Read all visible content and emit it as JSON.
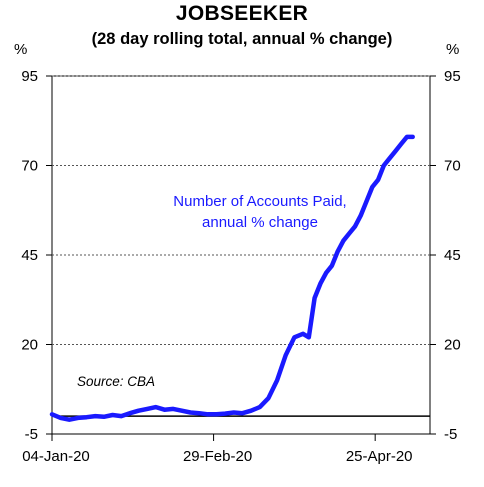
{
  "chart_data": {
    "type": "line",
    "title": "JOBSEEKER",
    "subtitle": "(28 day rolling total, annual % change)",
    "ylabel_left": "%",
    "ylabel_right": "%",
    "ylim": [
      -5,
      95
    ],
    "yticks": [
      "95",
      "70",
      "45",
      "20",
      "-5"
    ],
    "xtick_labels": [
      "04-Jan-20",
      "29-Feb-20",
      "25-Apr-20"
    ],
    "xtick_dates": [
      "2020-01-04",
      "2020-02-29",
      "2020-04-25"
    ],
    "xlim": [
      "2020-01-04",
      "2020-05-14"
    ],
    "grid": "horizontal dotted",
    "zero_line": true,
    "annotation": "Number of Accounts Paid, annual % change",
    "annotation_lines": [
      "Number of Accounts Paid,",
      "annual % change"
    ],
    "source": "Source: CBA",
    "series": [
      {
        "color": "#1a1aff",
        "x": [
          "2020-01-04",
          "2020-01-07",
          "2020-01-10",
          "2020-01-13",
          "2020-01-16",
          "2020-01-19",
          "2020-01-22",
          "2020-01-25",
          "2020-01-28",
          "2020-01-31",
          "2020-02-03",
          "2020-02-06",
          "2020-02-09",
          "2020-02-12",
          "2020-02-15",
          "2020-02-18",
          "2020-02-21",
          "2020-02-24",
          "2020-02-27",
          "2020-03-01",
          "2020-03-04",
          "2020-03-07",
          "2020-03-10",
          "2020-03-13",
          "2020-03-16",
          "2020-03-19",
          "2020-03-22",
          "2020-03-25",
          "2020-03-28",
          "2020-03-31",
          "2020-04-02",
          "2020-04-04",
          "2020-04-06",
          "2020-04-08",
          "2020-04-10",
          "2020-04-12",
          "2020-04-14",
          "2020-04-16",
          "2020-04-18",
          "2020-04-20",
          "2020-04-22",
          "2020-04-24",
          "2020-04-26",
          "2020-04-28",
          "2020-04-30",
          "2020-05-02",
          "2020-05-04",
          "2020-05-06",
          "2020-05-08"
        ],
        "y": [
          0.5,
          -0.5,
          -1.0,
          -0.5,
          -0.3,
          0.0,
          -0.2,
          0.3,
          0.0,
          0.8,
          1.5,
          2.0,
          2.5,
          1.8,
          2.0,
          1.5,
          1.0,
          0.8,
          0.5,
          0.5,
          0.7,
          1.0,
          0.8,
          1.5,
          2.5,
          5.0,
          10.0,
          17.0,
          22.0,
          23.0,
          22.0,
          33.0,
          37.0,
          40.0,
          42.0,
          46.0,
          49.0,
          51.0,
          53.0,
          56.0,
          60.0,
          64.0,
          66.0,
          70.0,
          72.0,
          74.0,
          76.0,
          78.0,
          78.0
        ]
      }
    ]
  }
}
